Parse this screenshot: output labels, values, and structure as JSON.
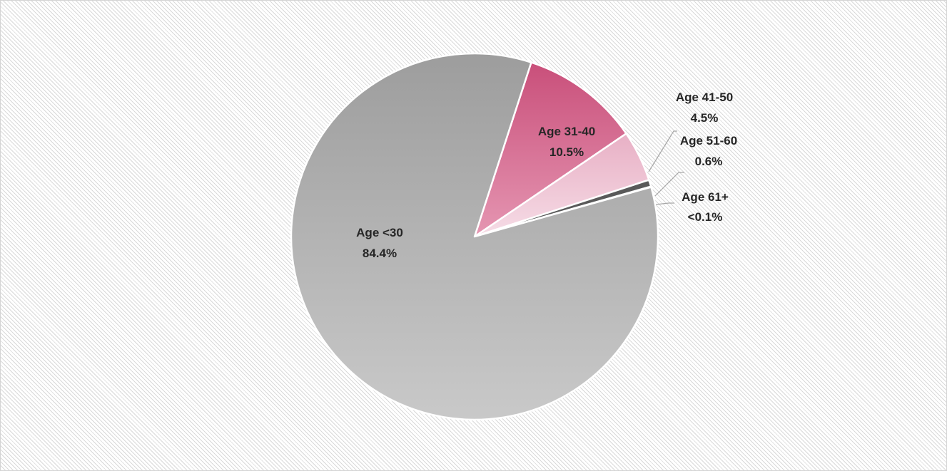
{
  "chart_data": {
    "type": "pie",
    "title": "",
    "slices": [
      {
        "label": "Age <30",
        "value_text": "84.4%",
        "value": 84.4,
        "color": "#b4b4b4"
      },
      {
        "label": "Age 31-40",
        "value_text": "10.5%",
        "value": 10.5,
        "color": "#d7628c"
      },
      {
        "label": "Age 41-50",
        "value_text": "4.5%",
        "value": 4.5,
        "color": "#efc3d3"
      },
      {
        "label": "Age 51-60",
        "value_text": "0.6%",
        "value": 0.6,
        "color": "#595959"
      },
      {
        "label": "Age 61+",
        "value_text": "<0.1%",
        "value": 0.05,
        "color": "#3f3f3f"
      }
    ],
    "legend": "none",
    "data_labels": "category and percentage"
  }
}
